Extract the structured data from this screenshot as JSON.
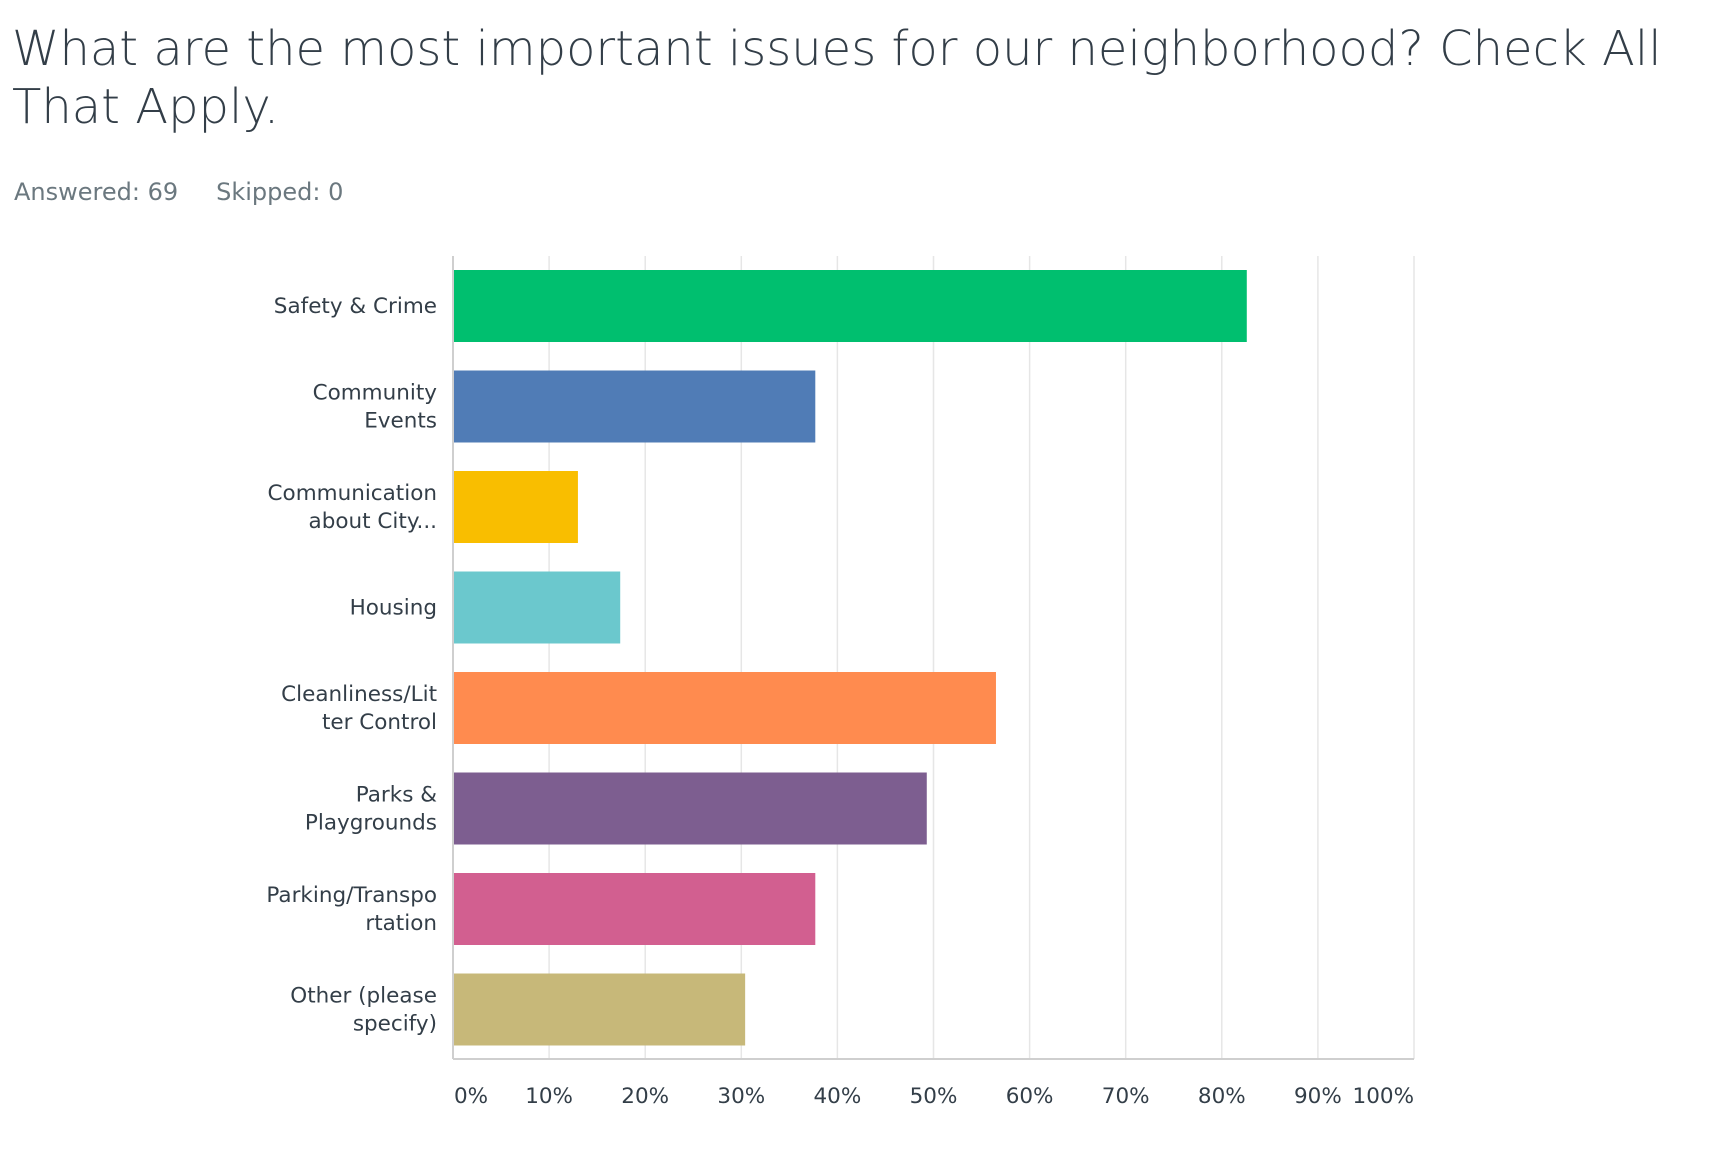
{
  "question": {
    "title": "What are the most important issues for our neighborhood? Check All That Apply."
  },
  "stats": {
    "answered": "Answered: 69",
    "skipped": "Skipped: 0"
  },
  "chart_data": {
    "type": "bar",
    "orientation": "horizontal",
    "xlim": [
      0,
      100
    ],
    "grid": true,
    "legend": "none",
    "x_ticks": [
      "0%",
      "10%",
      "20%",
      "30%",
      "40%",
      "50%",
      "60%",
      "70%",
      "80%",
      "90%",
      "100%"
    ],
    "categories": [
      "Safety & Crime",
      "Community Events",
      "Communication about City...",
      "Housing",
      "Cleanliness/Litter Control",
      "Parks & Playgrounds",
      "Parking/Transportation",
      "Other (please specify)"
    ],
    "label_lines": [
      [
        "Safety & Crime"
      ],
      [
        "Community",
        "Events"
      ],
      [
        "Communication",
        "about City..."
      ],
      [
        "Housing"
      ],
      [
        "Cleanliness/Lit",
        "ter Control"
      ],
      [
        "Parks &",
        "Playgrounds"
      ],
      [
        "Parking/Transpo",
        "rtation"
      ],
      [
        "Other (please",
        "specify)"
      ]
    ],
    "values": [
      82.6,
      37.7,
      13.0,
      17.4,
      56.5,
      49.3,
      37.7,
      30.4
    ],
    "colors": [
      "#00bf6f",
      "#507cb6",
      "#f9be00",
      "#6bc8cd",
      "#ff8b4f",
      "#7d5e90",
      "#d25f90",
      "#c7b879"
    ]
  }
}
